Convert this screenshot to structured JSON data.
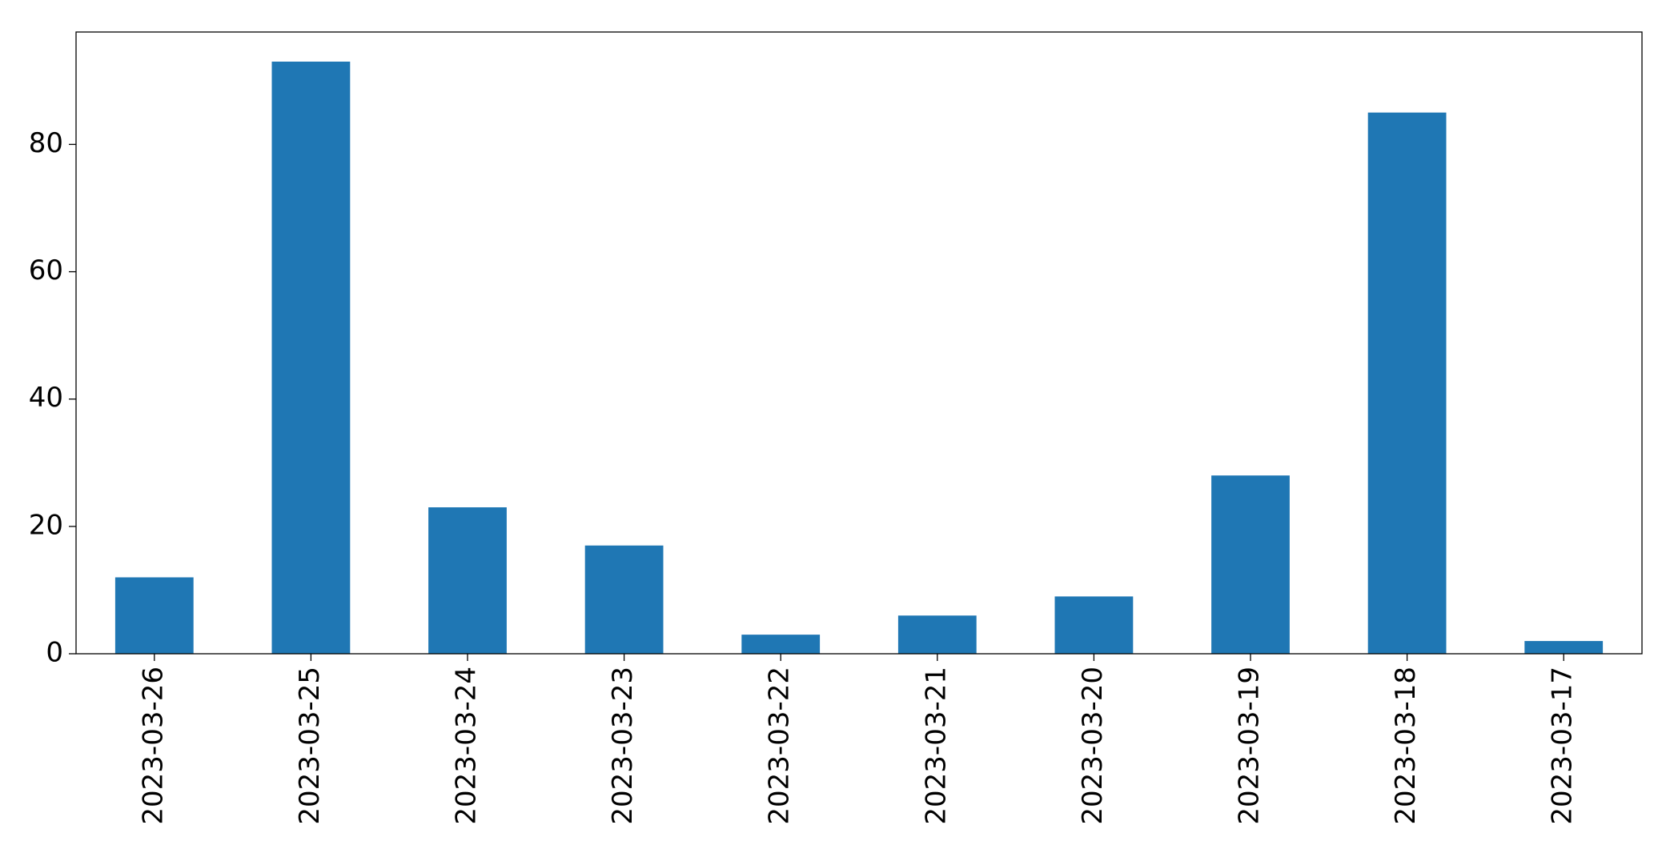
{
  "chart_data": {
    "type": "bar",
    "categories": [
      "2023-03-26",
      "2023-03-25",
      "2023-03-24",
      "2023-03-23",
      "2023-03-22",
      "2023-03-21",
      "2023-03-20",
      "2023-03-19",
      "2023-03-18",
      "2023-03-17"
    ],
    "values": [
      12,
      93,
      23,
      17,
      3,
      6,
      9,
      28,
      85,
      2
    ],
    "color": "#1f77b4",
    "ylim": [
      0,
      97.65
    ],
    "yticks": [
      0,
      20,
      40,
      60,
      80
    ],
    "grid": false
  }
}
